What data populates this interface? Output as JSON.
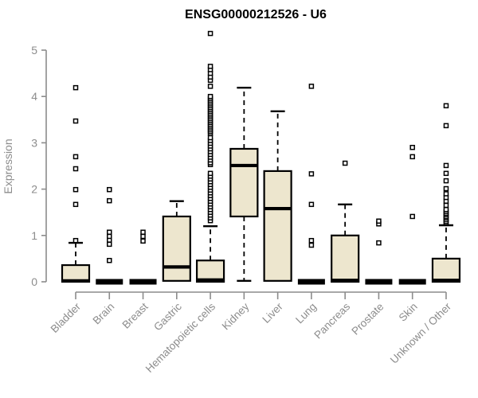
{
  "colors": {
    "box_fill": "#EDE6CE",
    "box_stroke": "#000000",
    "axis": "#8C8C8C",
    "title": "#000000",
    "background": "#FFFFFF"
  },
  "chart_data": {
    "type": "boxplot",
    "title": "ENSG00000212526 - U6",
    "ylabel": "Expression",
    "xlabel": "",
    "ylim": [
      0,
      5
    ],
    "yticks": [
      0,
      1,
      2,
      3,
      4,
      5
    ],
    "grid": false,
    "legend": "none",
    "categories": [
      "Bladder",
      "Brain",
      "Breast",
      "Gastric",
      "Hematopoietic cells",
      "Kidney",
      "Liver",
      "Lung",
      "Pancreas",
      "Prostate",
      "Skin",
      "Unknown / Other"
    ],
    "boxes": [
      {
        "category": "Bladder",
        "q1": 0,
        "median": 0.02,
        "q3": 0.36,
        "whisker_low": 0,
        "whisker_high": 0.84,
        "outliers": [
          0.89,
          1.67,
          1.99,
          2.44,
          2.7,
          3.47,
          4.19
        ]
      },
      {
        "category": "Brain",
        "q1": 0,
        "median": 0,
        "q3": 0,
        "whisker_low": 0,
        "whisker_high": 0,
        "outliers": [
          0.46,
          0.81,
          0.9,
          0.98,
          1.07,
          1.75,
          1.99
        ]
      },
      {
        "category": "Breast",
        "q1": 0,
        "median": 0,
        "q3": 0,
        "whisker_low": 0,
        "whisker_high": 0,
        "outliers": [
          0.88,
          0.98,
          1.07
        ]
      },
      {
        "category": "Gastric",
        "q1": 0.02,
        "median": 0.32,
        "q3": 1.41,
        "whisker_low": 0.02,
        "whisker_high": 1.74,
        "outliers": []
      },
      {
        "category": "Hematopoietic cells",
        "q1": 0,
        "median": 0.04,
        "q3": 0.46,
        "whisker_low": 0,
        "whisker_high": 1.2,
        "outliers": [
          1.32,
          1.38,
          1.44,
          1.5,
          1.56,
          1.62,
          1.68,
          1.74,
          1.8,
          1.86,
          1.92,
          1.98,
          2.04,
          2.1,
          2.16,
          2.22,
          2.28,
          2.34,
          2.53,
          2.57,
          2.63,
          2.69,
          2.75,
          2.81,
          2.87,
          2.93,
          2.99,
          3.05,
          3.11,
          3.2,
          3.24,
          3.28,
          3.32,
          3.36,
          3.4,
          3.44,
          3.48,
          3.52,
          3.56,
          3.6,
          3.64,
          3.68,
          3.72,
          3.76,
          3.8,
          3.84,
          3.88,
          3.92,
          3.96,
          4.0,
          4.22,
          4.35,
          4.42,
          4.5,
          4.58,
          4.65,
          5.36
        ]
      },
      {
        "category": "Kidney",
        "q1": 1.41,
        "median": 2.51,
        "q3": 2.87,
        "whisker_low": 0.02,
        "whisker_high": 4.19,
        "outliers": []
      },
      {
        "category": "Liver",
        "q1": 0.02,
        "median": 1.58,
        "q3": 2.39,
        "whisker_low": 0.02,
        "whisker_high": 3.68,
        "outliers": []
      },
      {
        "category": "Lung",
        "q1": 0,
        "median": 0,
        "q3": 0,
        "whisker_low": 0,
        "whisker_high": 0,
        "outliers": [
          0.79,
          0.89,
          1.67,
          2.33,
          4.22
        ]
      },
      {
        "category": "Pancreas",
        "q1": 0,
        "median": 0.03,
        "q3": 1.0,
        "whisker_low": 0,
        "whisker_high": 1.67,
        "outliers": [
          2.56
        ]
      },
      {
        "category": "Prostate",
        "q1": 0,
        "median": 0,
        "q3": 0,
        "whisker_low": 0,
        "whisker_high": 0,
        "outliers": [
          0.84,
          1.25,
          1.31
        ]
      },
      {
        "category": "Skin",
        "q1": 0,
        "median": 0,
        "q3": 0,
        "whisker_low": 0,
        "whisker_high": 0,
        "outliers": [
          1.41,
          2.7,
          2.9
        ]
      },
      {
        "category": "Unknown / Other",
        "q1": 0,
        "median": 0.03,
        "q3": 0.5,
        "whisker_low": 0,
        "whisker_high": 1.22,
        "outliers": [
          1.27,
          1.3,
          1.34,
          1.38,
          1.41,
          1.45,
          1.48,
          1.52,
          1.56,
          1.65,
          1.74,
          1.82,
          1.9,
          2.01,
          2.18,
          2.34,
          2.51,
          3.37,
          3.8
        ]
      }
    ]
  }
}
